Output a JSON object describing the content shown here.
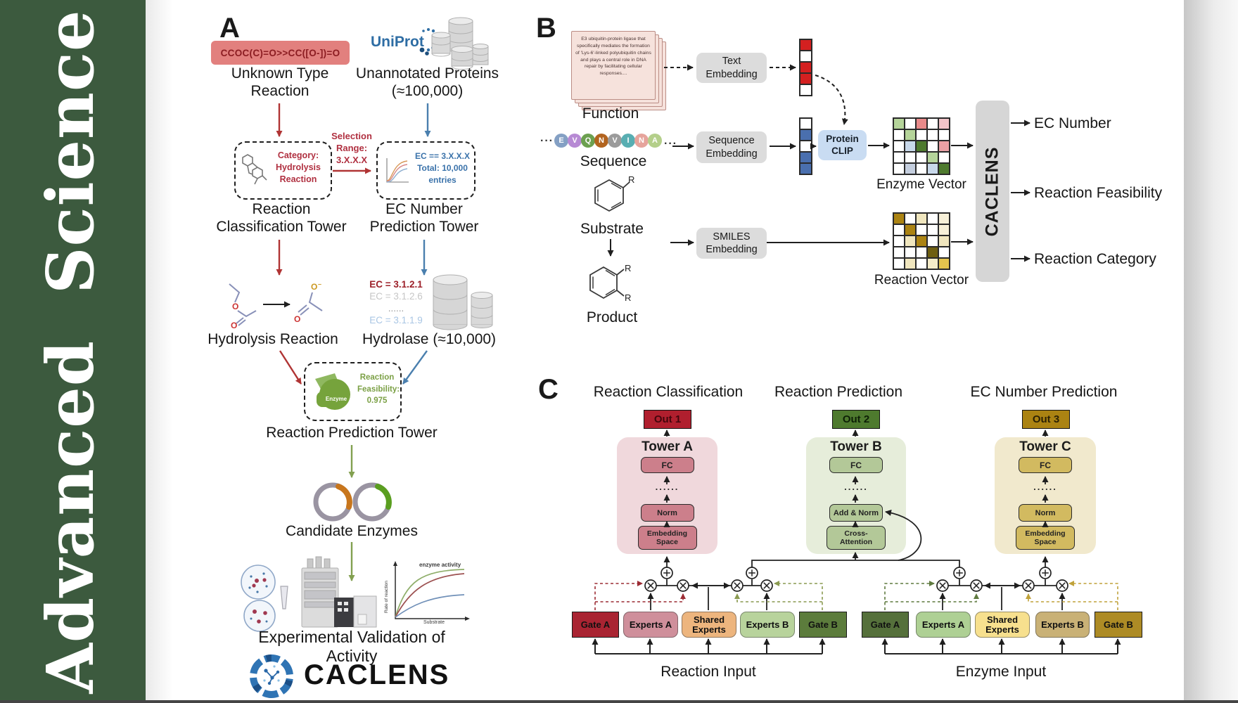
{
  "journal": {
    "brand": "Advanced  Science"
  },
  "colors": {
    "journal_green": "#3c5a3e",
    "arrow_red": "#b03434",
    "arrow_blue": "#4a7fae",
    "arrow_green": "#82a050",
    "smiles_box_bg": "#e2807e",
    "smiles_text": "#8c1d22",
    "uniprot_blue": "#2e6da4",
    "protein_clip_bg": "#c9dcf2",
    "embedding_box_bg": "#dcdcdc",
    "caclens_bar_bg": "#d6d6d6",
    "tower_a_bg": "#f0d8dc",
    "tower_a_box": "#cc7f8b",
    "out1_bg": "#b01f2e",
    "tower_b_bg": "#e6edda",
    "tower_b_box": "#b3c898",
    "out2_bg": "#4e7a2e",
    "tower_c_bg": "#f1e9cd",
    "tower_c_box": "#d2ba60",
    "out3_bg": "#ab8312",
    "gate_a_left": "#a92432",
    "experts_a_left": "#cf8f9b",
    "shared_left": "#edb57e",
    "experts_b_left": "#b8d39c",
    "gate_b_left": "#5c7c3c",
    "gate_a_right": "#55703b",
    "experts_a_right": "#aed094",
    "shared_right": "#f7e08e",
    "experts_b_right": "#c9b176",
    "gate_b_right": "#ad8b25"
  },
  "panelA": {
    "label": "A",
    "smiles": "CCOC(C)=O>>CC([O-])=O",
    "unknown_reaction_label": "Unknown Type Reaction",
    "uniprot": "UniProt",
    "unannotated_label": "Unannotated Proteins (≈100,000)",
    "selection_range": "Selection Range: 3.X.X.X",
    "classification_box": "Category: Hydrolysis Reaction",
    "ec_box_l1": "EC == 3.X.X.X",
    "ec_box_l2": "Total: 10,000",
    "ec_box_l3": "entries",
    "classification_tower_label": "Reaction Classification Tower",
    "ec_tower_label": "EC Number Prediction Tower",
    "hydrolysis_label": "Hydrolysis Reaction",
    "ec_list": [
      {
        "text": "EC = 3.1.2.1",
        "color": "#9c1f28",
        "bold": true
      },
      {
        "text": "EC = 3.1.2.6",
        "color": "#c6c6c6"
      },
      {
        "text": "......",
        "color": "#9a9a9a"
      },
      {
        "text": "EC = 3.1.1.9",
        "color": "#a9c6e4"
      }
    ],
    "hydrolase_label": "Hydrolase (≈10,000)",
    "enzyme_icon_label": "Enzyme",
    "feasibility_l1": "Reaction",
    "feasibility_l2": "Feasibility:",
    "feasibility_l3": "0.975",
    "prediction_tower_label": "Reaction Prediction Tower",
    "candidate_label": "Candidate Enzymes",
    "plot": {
      "curve_label": "enzyme activity",
      "ylabel": "Rate of reaction",
      "xlabel": "Substrate"
    },
    "validation_label": "Experimental Validation of Activity",
    "logo_text": "CACLENS"
  },
  "panelB": {
    "label": "B",
    "function_card_text": "E3 ubiquitin-protein ligase that specifically mediates the formation of 'Lys-6'-linked polyubiquitin chains and plays a central role in DNA repair by facilitating cellular responses....",
    "function_label": "Function",
    "ellipsis": "···",
    "sequence_label": "Sequence",
    "sequence_letters": [
      {
        "ch": "E",
        "color": "#84a0c4"
      },
      {
        "ch": "V",
        "color": "#b78ad4"
      },
      {
        "ch": "Q",
        "color": "#6ca050"
      },
      {
        "ch": "N",
        "color": "#b2641f"
      },
      {
        "ch": "V",
        "color": "#9b9b9b"
      },
      {
        "ch": "I",
        "color": "#58aeb2"
      },
      {
        "ch": "N",
        "color": "#e6a49c"
      },
      {
        "ch": "A",
        "color": "#b4cf8a"
      }
    ],
    "substrate_label": "Substrate",
    "product_label": "Product",
    "r_label": "R",
    "text_embedding": "Text Embedding",
    "sequence_embedding": "Sequence Embedding",
    "smiles_embedding": "SMILES Embedding",
    "protein_clip": "Protein CLIP",
    "red_vector": [
      "#d42020",
      "#ffffff",
      "#d42020",
      "#d42020",
      "#ffffff"
    ],
    "blue_vector": [
      "#ffffff",
      "#4a6fae",
      "#ffffff",
      "#4a6fae",
      "#4a6fae"
    ],
    "enzyme_vector_cells": [
      [
        "#b5d49a",
        "#ffffff",
        "#e88a8a",
        "#ffffff",
        "#f2c4c8"
      ],
      [
        "#ffffff",
        "#b5d49a",
        "#ffffff",
        "#ffffff",
        "#ffffff"
      ],
      [
        "#ffffff",
        "#c8d8ea",
        "#4e7a2e",
        "#ffffff",
        "#eaa0a4"
      ],
      [
        "#ffffff",
        "#ffffff",
        "#ffffff",
        "#b5d49a",
        "#ffffff"
      ],
      [
        "#ffffff",
        "#c4cede",
        "#ffffff",
        "#c8d8ea",
        "#4e7a2e"
      ]
    ],
    "reaction_vector_cells": [
      [
        "#ab8312",
        "#ffffff",
        "#f0e6be",
        "#ffffff",
        "#f7f0d8"
      ],
      [
        "#ffffff",
        "#ab8312",
        "#ffffff",
        "#ffffff",
        "#f7f0d8"
      ],
      [
        "#ffffff",
        "#f0e6be",
        "#ab8312",
        "#ffffff",
        "#f0e6be"
      ],
      [
        "#ffffff",
        "#ffffff",
        "#ffffff",
        "#6e5e10",
        "#ffffff"
      ],
      [
        "#ffffff",
        "#f0e6be",
        "#ffffff",
        "#f5ecc8",
        "#e4c44e"
      ]
    ],
    "enzyme_vector_label": "Enzyme Vector",
    "reaction_vector_label": "Reaction Vector",
    "caclens_label": "CACLENS",
    "outputs": [
      "EC Number",
      "Reaction Feasibility",
      "Reaction Category"
    ]
  },
  "panelC": {
    "label": "C",
    "col_titles": [
      "Reaction Classification",
      "Reaction Prediction",
      "EC Number Prediction"
    ],
    "outs": [
      "Out 1",
      "Out 2",
      "Out 3"
    ],
    "towers": [
      {
        "title": "Tower A",
        "fc": "FC",
        "dots": "......",
        "mid": "Norm",
        "bottom": "Embedding Space"
      },
      {
        "title": "Tower B",
        "fc": "FC",
        "dots": "......",
        "mid": "Add & Norm",
        "bottom": "Cross-Attention"
      },
      {
        "title": "Tower C",
        "fc": "FC",
        "dots": "......",
        "mid": "Norm",
        "bottom": "Embedding Space"
      }
    ],
    "gates_left": [
      "Gate A",
      "Experts A",
      "Shared Experts",
      "Experts B",
      "Gate B"
    ],
    "gates_right": [
      "Gate A",
      "Experts A",
      "Shared Experts",
      "Experts B",
      "Gate B"
    ],
    "input_labels": [
      "Reaction Input",
      "Enzyme Input"
    ]
  }
}
